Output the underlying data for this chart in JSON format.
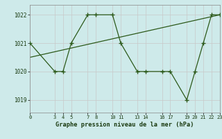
{
  "x": [
    0,
    3,
    4,
    5,
    7,
    8,
    10,
    11,
    13,
    14,
    16,
    17,
    19,
    20,
    21,
    22,
    23
  ],
  "y": [
    1021,
    1020,
    1020,
    1021,
    1022,
    1022,
    1022,
    1021,
    1020,
    1020,
    1020,
    1020,
    1019,
    1020,
    1021,
    1022,
    1022
  ],
  "trend_x": [
    0,
    23
  ],
  "trend_y": [
    1020.5,
    1022.0
  ],
  "line_color": "#2d5a1b",
  "bg_color": "#ceeaea",
  "grid_color_v": "#c8c8c8",
  "grid_color_h": "#c8c8c8",
  "xlabel": "Graphe pression niveau de la mer (hPa)",
  "xticks": [
    0,
    3,
    4,
    5,
    7,
    8,
    10,
    11,
    13,
    14,
    16,
    17,
    19,
    20,
    21,
    22,
    23
  ],
  "yticks": [
    1019,
    1020,
    1021,
    1022
  ],
  "ylim": [
    1018.55,
    1022.35
  ],
  "xlim": [
    0,
    23
  ]
}
